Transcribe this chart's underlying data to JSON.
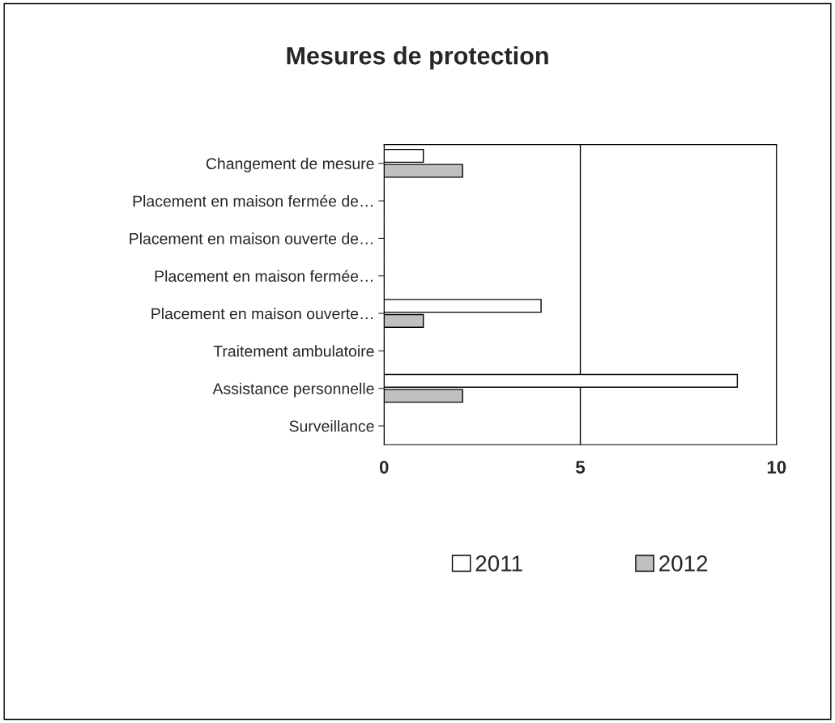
{
  "chart_data": {
    "type": "bar",
    "title": "Mesures de protection",
    "orientation": "horizontal",
    "categories": [
      "Changement de mesure",
      "Placement en maison fermée de…",
      "Placement en maison ouverte de…",
      "Placement en maison fermée…",
      "Placement en maison ouverte…",
      "Traitement ambulatoire",
      "Assistance personnelle",
      "Surveillance"
    ],
    "series": [
      {
        "name": "2011",
        "color": "#ffffff",
        "values": [
          1,
          0,
          0,
          0,
          4,
          0,
          9,
          0
        ]
      },
      {
        "name": "2012",
        "color": "#c0c0c0",
        "values": [
          2,
          0,
          0,
          0,
          1,
          0,
          2,
          0
        ]
      }
    ],
    "xlim": [
      0,
      10
    ],
    "xticks": [
      0,
      5,
      10
    ],
    "grid": "x",
    "legend": "bottom"
  }
}
